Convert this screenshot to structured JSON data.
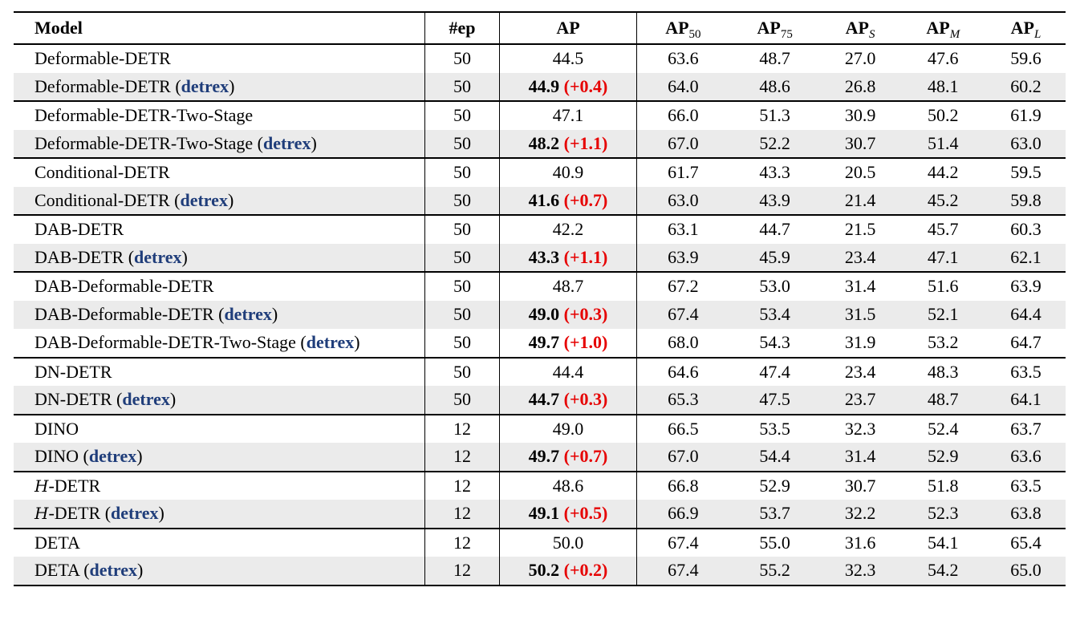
{
  "header": {
    "model": "Model",
    "ep": "#ep",
    "ap": "AP",
    "ap50": "AP",
    "ap50_sub": "50",
    "ap75": "AP",
    "ap75_sub": "75",
    "aps": "AP",
    "aps_sub": "S",
    "apm": "AP",
    "apm_sub": "M",
    "apl": "AP",
    "apl_sub": "L"
  },
  "detrex_word": "detrex",
  "rows": [
    {
      "model": "Deformable-DETR",
      "detrex": false,
      "ep": "50",
      "ap": "44.5",
      "delta": "",
      "ap50": "63.6",
      "ap75": "48.7",
      "aps": "27.0",
      "apm": "47.6",
      "apl": "59.6"
    },
    {
      "model": "Deformable-DETR",
      "detrex": true,
      "ep": "50",
      "ap": "44.9",
      "delta": "(+0.4)",
      "ap50": "64.0",
      "ap75": "48.6",
      "aps": "26.8",
      "apm": "48.1",
      "apl": "60.2"
    },
    {
      "model": "Deformable-DETR-Two-Stage",
      "detrex": false,
      "ep": "50",
      "ap": "47.1",
      "delta": "",
      "ap50": "66.0",
      "ap75": "51.3",
      "aps": "30.9",
      "apm": "50.2",
      "apl": "61.9"
    },
    {
      "model": "Deformable-DETR-Two-Stage",
      "detrex": true,
      "ep": "50",
      "ap": "48.2",
      "delta": "(+1.1)",
      "ap50": "67.0",
      "ap75": "52.2",
      "aps": "30.7",
      "apm": "51.4",
      "apl": "63.0"
    },
    {
      "model": "Conditional-DETR",
      "detrex": false,
      "ep": "50",
      "ap": "40.9",
      "delta": "",
      "ap50": "61.7",
      "ap75": "43.3",
      "aps": "20.5",
      "apm": "44.2",
      "apl": "59.5"
    },
    {
      "model": "Conditional-DETR",
      "detrex": true,
      "ep": "50",
      "ap": "41.6",
      "delta": "(+0.7)",
      "ap50": "63.0",
      "ap75": "43.9",
      "aps": "21.4",
      "apm": "45.2",
      "apl": "59.8"
    },
    {
      "model": "DAB-DETR",
      "detrex": false,
      "ep": "50",
      "ap": "42.2",
      "delta": "",
      "ap50": "63.1",
      "ap75": "44.7",
      "aps": "21.5",
      "apm": "45.7",
      "apl": "60.3"
    },
    {
      "model": "DAB-DETR",
      "detrex": true,
      "ep": "50",
      "ap": "43.3",
      "delta": "(+1.1)",
      "ap50": "63.9",
      "ap75": "45.9",
      "aps": "23.4",
      "apm": "47.1",
      "apl": "62.1"
    },
    {
      "model": "DAB-Deformable-DETR",
      "detrex": false,
      "ep": "50",
      "ap": "48.7",
      "delta": "",
      "ap50": "67.2",
      "ap75": "53.0",
      "aps": "31.4",
      "apm": "51.6",
      "apl": "63.9"
    },
    {
      "model": "DAB-Deformable-DETR",
      "detrex": true,
      "ep": "50",
      "ap": "49.0",
      "delta": "(+0.3)",
      "ap50": "67.4",
      "ap75": "53.4",
      "aps": "31.5",
      "apm": "52.1",
      "apl": "64.4"
    },
    {
      "model": "DAB-Deformable-DETR-Two-Stage",
      "detrex": true,
      "ep": "50",
      "ap": "49.7",
      "delta": "(+1.0)",
      "ap50": "68.0",
      "ap75": "54.3",
      "aps": "31.9",
      "apm": "53.2",
      "apl": "64.7"
    },
    {
      "model": "DN-DETR",
      "detrex": false,
      "ep": "50",
      "ap": "44.4",
      "delta": "",
      "ap50": "64.6",
      "ap75": "47.4",
      "aps": "23.4",
      "apm": "48.3",
      "apl": "63.5"
    },
    {
      "model": "DN-DETR",
      "detrex": true,
      "ep": "50",
      "ap": "44.7",
      "delta": "(+0.3)",
      "ap50": "65.3",
      "ap75": "47.5",
      "aps": "23.7",
      "apm": "48.7",
      "apl": "64.1"
    },
    {
      "model": "DINO",
      "detrex": false,
      "ep": "12",
      "ap": "49.0",
      "delta": "",
      "ap50": "66.5",
      "ap75": "53.5",
      "aps": "32.3",
      "apm": "52.4",
      "apl": "63.7"
    },
    {
      "model": "DINO",
      "detrex": true,
      "ep": "12",
      "ap": "49.7",
      "delta": "(+0.7)",
      "ap50": "67.0",
      "ap75": "54.4",
      "aps": "31.4",
      "apm": "52.9",
      "apl": "63.6"
    },
    {
      "model": "-DETR",
      "prefix": "H",
      "detrex": false,
      "ep": "12",
      "ap": "48.6",
      "delta": "",
      "ap50": "66.8",
      "ap75": "52.9",
      "aps": "30.7",
      "apm": "51.8",
      "apl": "63.5"
    },
    {
      "model": "-DETR",
      "prefix": "H",
      "detrex": true,
      "ep": "12",
      "ap": "49.1",
      "delta": "(+0.5)",
      "ap50": "66.9",
      "ap75": "53.7",
      "aps": "32.2",
      "apm": "52.3",
      "apl": "63.8"
    },
    {
      "model": "DETA",
      "detrex": false,
      "ep": "12",
      "ap": "50.0",
      "delta": "",
      "ap50": "67.4",
      "ap75": "55.0",
      "aps": "31.6",
      "apm": "54.1",
      "apl": "65.4"
    },
    {
      "model": "DETA",
      "detrex": true,
      "ep": "12",
      "ap": "50.2",
      "delta": "(+0.2)",
      "ap50": "67.4",
      "ap75": "55.2",
      "aps": "32.3",
      "apm": "54.2",
      "apl": "65.0"
    }
  ]
}
